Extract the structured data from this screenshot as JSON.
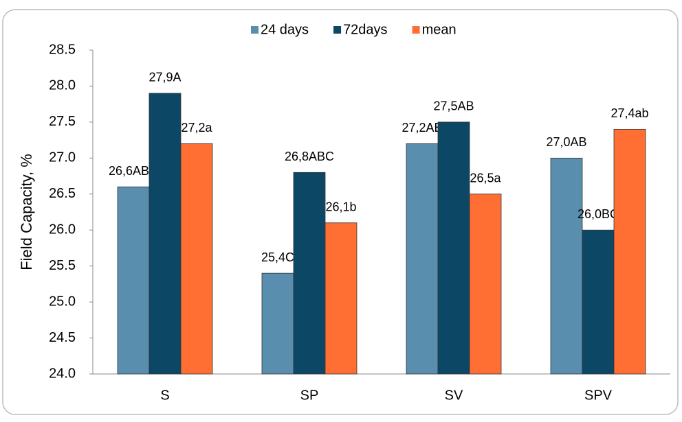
{
  "chart_data": {
    "type": "bar",
    "ylabel": "Field  Capacity, %",
    "categories": [
      "S",
      "SP",
      "SV",
      "SPV"
    ],
    "series": [
      {
        "name": "24 days",
        "color": "#5a8eaf",
        "values": [
          26.6,
          25.4,
          27.2,
          27.0
        ],
        "value_labels": [
          "26,6ABC",
          "25,4C",
          "27,2AB",
          "27,0AB"
        ]
      },
      {
        "name": "72days",
        "color": "#0c4866",
        "values": [
          27.9,
          26.8,
          27.5,
          26.0
        ],
        "value_labels": [
          "27,9A",
          "26,8ABC",
          "27,5AB",
          "26,0BC"
        ]
      },
      {
        "name": "mean",
        "color": "#ff6f34",
        "values": [
          27.2,
          26.1,
          26.5,
          27.4
        ],
        "value_labels": [
          "27,2a",
          "26,1b",
          "26,5a",
          "27,4ab"
        ]
      }
    ],
    "ylim": [
      24,
      28.5
    ],
    "yticks": [
      {
        "value": 24,
        "label": "24.0"
      },
      24.5,
      {
        "value": 25,
        "label": "25.0"
      },
      25.5,
      {
        "value": 26,
        "label": "26.0"
      },
      26.5,
      {
        "value": 27,
        "label": "27.0"
      },
      27.5,
      {
        "value": 28,
        "label": "28.0"
      },
      28.5
    ],
    "legend": "top"
  }
}
